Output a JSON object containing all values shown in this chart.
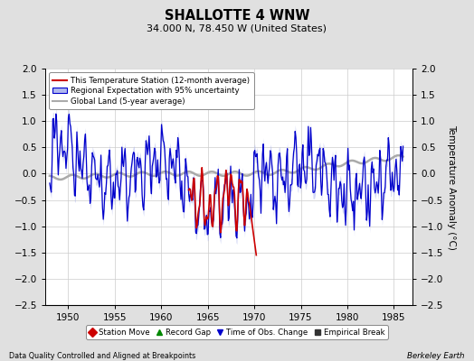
{
  "title": "SHALLOTTE 4 WNW",
  "subtitle": "34.000 N, 78.450 W (United States)",
  "ylabel": "Temperature Anomaly (°C)",
  "xlabel_left": "Data Quality Controlled and Aligned at Breakpoints",
  "xlabel_right": "Berkeley Earth",
  "ylim": [
    -2.5,
    2.0
  ],
  "xlim": [
    1947.5,
    1987.0
  ],
  "yticks": [
    -2.5,
    -2.0,
    -1.5,
    -1.0,
    -0.5,
    0.0,
    0.5,
    1.0,
    1.5,
    2.0
  ],
  "xticks": [
    1950,
    1955,
    1960,
    1965,
    1970,
    1975,
    1980,
    1985
  ],
  "bg_color": "#e0e0e0",
  "plot_bg_color": "#ffffff",
  "grid_color": "#cccccc",
  "red_line_color": "#cc0000",
  "blue_line_color": "#0000cc",
  "blue_fill_color": "#b0b8ee",
  "gray_line_color": "#aaaaaa",
  "legend_items": [
    "This Temperature Station (12-month average)",
    "Regional Expectation with 95% uncertainty",
    "Global Land (5-year average)"
  ],
  "marker_legend": [
    {
      "label": "Station Move",
      "color": "#cc0000",
      "marker": "D"
    },
    {
      "label": "Record Gap",
      "color": "#008800",
      "marker": "^"
    },
    {
      "label": "Time of Obs. Change",
      "color": "#0000cc",
      "marker": "v"
    },
    {
      "label": "Empirical Break",
      "color": "#333333",
      "marker": "s"
    }
  ]
}
